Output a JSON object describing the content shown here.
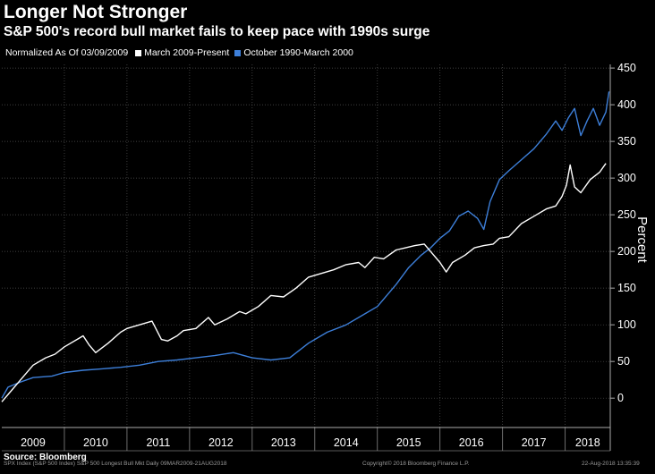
{
  "header": {
    "title": "Longer Not Stronger",
    "subtitle": "S&P 500's record bull market fails to keep pace with 1990s surge"
  },
  "legend": {
    "note": "Normalized As Of 03/09/2009",
    "items": [
      {
        "label": "March 2009-Present",
        "color": "#ffffff"
      },
      {
        "label": "October 1990-March 2000",
        "color": "#3d7fd9"
      }
    ]
  },
  "footer": {
    "source": "Source: Bloomberg",
    "left": "SPX Index (S&P 500 Index) S&P 500 Longest Bull Mkt  Daily 09MAR2009-21AUG2018",
    "center": "Copyright© 2018 Bloomberg Finance L.P.",
    "right": "22-Aug-2018 13:35:39"
  },
  "chart_data": {
    "type": "line",
    "ylabel": "Percent",
    "xlabel": "",
    "ylim": [
      -40,
      455
    ],
    "xlim": [
      2009.0,
      2018.72
    ],
    "y_ticks": [
      0,
      50,
      100,
      150,
      200,
      250,
      300,
      350,
      400,
      450
    ],
    "x_tick_labels": [
      "2009",
      "2010",
      "2011",
      "2012",
      "2013",
      "2014",
      "2015",
      "2016",
      "2017",
      "2018"
    ],
    "grid": true,
    "legend_position": "top-left",
    "series": [
      {
        "name": "March 2009-Present",
        "color": "#ffffff",
        "x": [
          2009.0,
          2009.15,
          2009.3,
          2009.5,
          2009.7,
          2009.85,
          2010.0,
          2010.2,
          2010.3,
          2010.4,
          2010.5,
          2010.7,
          2010.9,
          2011.0,
          2011.2,
          2011.4,
          2011.55,
          2011.65,
          2011.8,
          2011.9,
          2012.1,
          2012.3,
          2012.4,
          2012.6,
          2012.8,
          2012.9,
          2013.1,
          2013.3,
          2013.5,
          2013.7,
          2013.9,
          2014.1,
          2014.3,
          2014.5,
          2014.7,
          2014.8,
          2014.95,
          2015.1,
          2015.3,
          2015.45,
          2015.6,
          2015.75,
          2015.85,
          2016.0,
          2016.1,
          2016.2,
          2016.4,
          2016.55,
          2016.7,
          2016.85,
          2016.95,
          2017.1,
          2017.3,
          2017.5,
          2017.7,
          2017.85,
          2017.95,
          2018.02,
          2018.08,
          2018.15,
          2018.25,
          2018.4,
          2018.55,
          2018.65
        ],
        "y": [
          -5,
          10,
          25,
          45,
          55,
          60,
          70,
          80,
          85,
          72,
          62,
          75,
          90,
          95,
          100,
          105,
          80,
          78,
          85,
          92,
          95,
          110,
          100,
          108,
          118,
          115,
          125,
          140,
          138,
          150,
          165,
          170,
          175,
          182,
          185,
          178,
          192,
          190,
          202,
          205,
          208,
          210,
          200,
          185,
          172,
          185,
          195,
          205,
          208,
          210,
          218,
          220,
          238,
          248,
          258,
          262,
          275,
          290,
          318,
          288,
          280,
          298,
          308,
          320
        ]
      },
      {
        "name": "October 1990-March 2000",
        "color": "#3d7fd9",
        "x": [
          2009.0,
          2009.1,
          2009.3,
          2009.5,
          2009.8,
          2010.0,
          2010.3,
          2010.6,
          2010.9,
          2011.2,
          2011.5,
          2011.8,
          2012.1,
          2012.4,
          2012.7,
          2013.0,
          2013.3,
          2013.6,
          2013.9,
          2014.2,
          2014.5,
          2014.8,
          2015.0,
          2015.15,
          2015.3,
          2015.5,
          2015.7,
          2015.85,
          2016.0,
          2016.15,
          2016.3,
          2016.45,
          2016.6,
          2016.7,
          2016.8,
          2016.95,
          2017.1,
          2017.3,
          2017.5,
          2017.7,
          2017.85,
          2017.95,
          2018.05,
          2018.15,
          2018.25,
          2018.35,
          2018.45,
          2018.55,
          2018.65,
          2018.7
        ],
        "y": [
          0,
          15,
          22,
          28,
          30,
          35,
          38,
          40,
          42,
          45,
          50,
          52,
          55,
          58,
          62,
          55,
          52,
          55,
          75,
          90,
          100,
          115,
          125,
          140,
          155,
          178,
          195,
          205,
          218,
          228,
          248,
          255,
          245,
          230,
          268,
          298,
          310,
          325,
          340,
          360,
          378,
          365,
          382,
          395,
          358,
          378,
          395,
          372,
          390,
          418
        ]
      }
    ]
  }
}
